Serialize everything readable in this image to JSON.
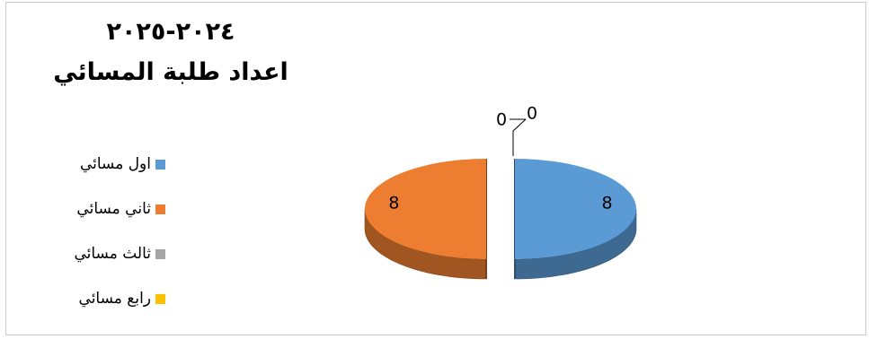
{
  "chart_data": {
    "type": "pie",
    "title_line1": "٢٠٢٤-٢٠٢٥",
    "title_line2": "اعداد طلبة المسائي",
    "categories": [
      "اول مسائي",
      "ثاني مسائي",
      "ثالث مسائي",
      "رابع مسائي"
    ],
    "values": [
      8,
      8,
      0,
      0
    ],
    "colors": [
      "#5b9bd5",
      "#ed7d31",
      "#a5a5a5",
      "#ffc000"
    ],
    "data_labels": [
      "8",
      "8",
      "0",
      "0"
    ],
    "legend_position": "left",
    "style": "3d-exploded"
  }
}
